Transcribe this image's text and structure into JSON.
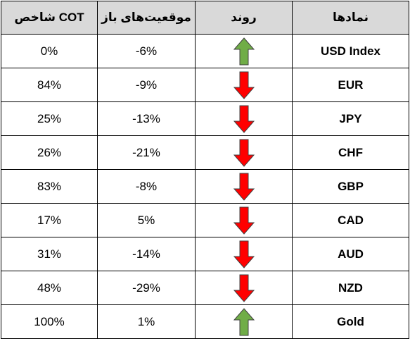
{
  "table": {
    "headers": {
      "cot": "شاخص COT",
      "positions": "موقعیت‌های باز",
      "trend": "روند",
      "symbols": "نمادها"
    },
    "colors": {
      "up": "#70ad47",
      "down": "#ff0000",
      "header_bg": "#d9d9d9"
    },
    "rows": [
      {
        "cot": "0%",
        "positions": "-6%",
        "trend": "up",
        "symbol": "USD Index"
      },
      {
        "cot": "84%",
        "positions": "-9%",
        "trend": "down",
        "symbol": "EUR"
      },
      {
        "cot": "25%",
        "positions": "-13%",
        "trend": "down",
        "symbol": "JPY"
      },
      {
        "cot": "26%",
        "positions": "-21%",
        "trend": "down",
        "symbol": "CHF"
      },
      {
        "cot": "83%",
        "positions": "-8%",
        "trend": "down",
        "symbol": "GBP"
      },
      {
        "cot": "17%",
        "positions": "5%",
        "trend": "down",
        "symbol": "CAD"
      },
      {
        "cot": "31%",
        "positions": "-14%",
        "trend": "down",
        "symbol": "AUD"
      },
      {
        "cot": "48%",
        "positions": "-29%",
        "trend": "down",
        "symbol": "NZD"
      },
      {
        "cot": "100%",
        "positions": "1%",
        "trend": "up",
        "symbol": "Gold"
      }
    ]
  }
}
